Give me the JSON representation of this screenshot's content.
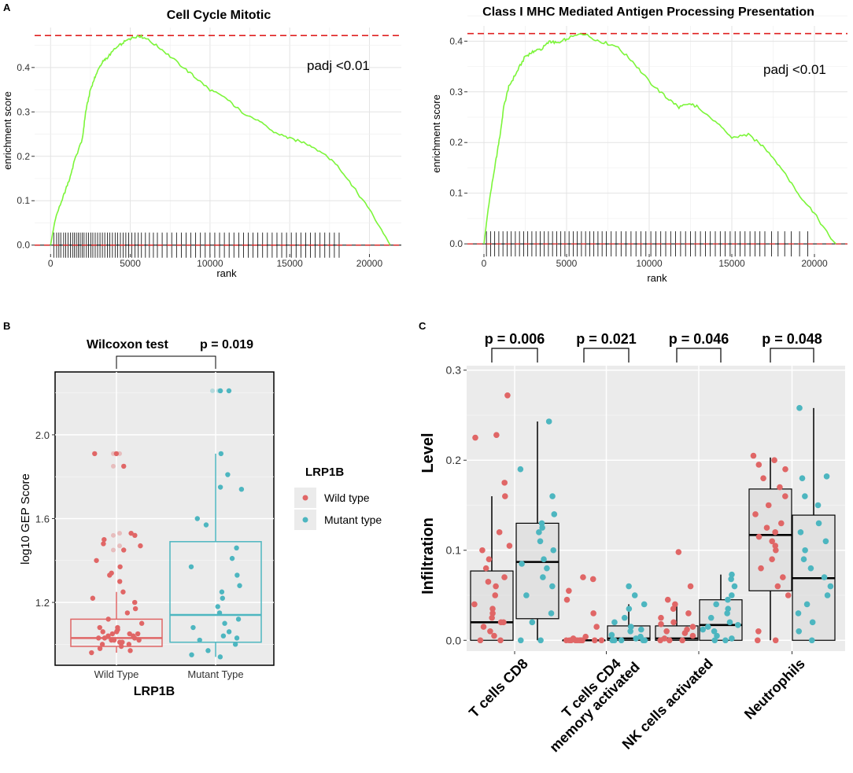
{
  "panels": {
    "A": {
      "letter": "A"
    },
    "B": {
      "letter": "B"
    },
    "C": {
      "letter": "C"
    }
  },
  "chart_data": [
    {
      "id": "gsea1",
      "type": "line",
      "title": "Cell Cycle Mitotic",
      "xlabel": "rank",
      "ylabel": "enrichment score",
      "annotation": "padj <0.01",
      "xlim": [
        -1000,
        22000
      ],
      "ylim": [
        -0.02,
        0.49
      ],
      "xticks": [
        0,
        5000,
        10000,
        15000,
        20000
      ],
      "xtick_labels": [
        "0",
        "5000",
        "10000",
        "15000",
        "20000"
      ],
      "yticks": [
        0.0,
        0.1,
        0.2,
        0.3,
        0.4
      ],
      "ytick_labels": [
        "0.0",
        "0.1",
        "0.2",
        "0.3",
        "0.4"
      ],
      "max_es": 0.472,
      "line_color": "#7cf53a",
      "curve": [
        [
          0,
          0
        ],
        [
          300,
          0.06
        ],
        [
          800,
          0.11
        ],
        [
          1200,
          0.15
        ],
        [
          1500,
          0.19
        ],
        [
          2000,
          0.24
        ],
        [
          2200,
          0.3
        ],
        [
          2500,
          0.35
        ],
        [
          2800,
          0.38
        ],
        [
          3200,
          0.41
        ],
        [
          3500,
          0.42
        ],
        [
          4000,
          0.44
        ],
        [
          4500,
          0.455
        ],
        [
          5000,
          0.465
        ],
        [
          5500,
          0.472
        ],
        [
          6000,
          0.465
        ],
        [
          7000,
          0.44
        ],
        [
          8000,
          0.41
        ],
        [
          9000,
          0.38
        ],
        [
          10000,
          0.35
        ],
        [
          11000,
          0.33
        ],
        [
          12000,
          0.3
        ],
        [
          13000,
          0.28
        ],
        [
          14000,
          0.255
        ],
        [
          15000,
          0.24
        ],
        [
          16000,
          0.23
        ],
        [
          17000,
          0.21
        ],
        [
          18000,
          0.18
        ],
        [
          19000,
          0.13
        ],
        [
          20000,
          0.08
        ],
        [
          21000,
          0.02
        ],
        [
          21300,
          0
        ]
      ],
      "hits": [
        200,
        380,
        520,
        640,
        820,
        950,
        1100,
        1240,
        1380,
        1500,
        1620,
        1740,
        1860,
        1980,
        2100,
        2250,
        2380,
        2520,
        2650,
        2800,
        2950,
        3100,
        3250,
        3400,
        3560,
        3720,
        3880,
        4050,
        4200,
        4380,
        4550,
        4720,
        4900,
        5100,
        5300,
        5500,
        5700,
        5950,
        6200,
        6450,
        6700,
        7000,
        7300,
        7600,
        7900,
        8200,
        8500,
        8800,
        9100,
        9400,
        9700,
        10000,
        10300,
        10600,
        10900,
        11200,
        11500,
        11800,
        12100,
        12400,
        12700,
        13000,
        13300,
        13600,
        13900,
        14200,
        14500,
        14800,
        15100,
        15400,
        15700,
        16000,
        16300,
        16600,
        16900,
        17200,
        17500,
        17800,
        18100
      ]
    },
    {
      "id": "gsea2",
      "type": "line",
      "title": "Class I MHC Mediated Antigen Processing Presentation",
      "xlabel": "rank",
      "ylabel": "enrichment score",
      "annotation": "padj <0.01",
      "xlim": [
        -1000,
        22000
      ],
      "ylim": [
        -0.02,
        0.43
      ],
      "xticks": [
        0,
        5000,
        10000,
        15000,
        20000
      ],
      "xtick_labels": [
        "0",
        "5000",
        "10000",
        "15000",
        "20000"
      ],
      "yticks": [
        0.0,
        0.1,
        0.2,
        0.3,
        0.4
      ],
      "ytick_labels": [
        "0.0",
        "0.1",
        "0.2",
        "0.3",
        "0.4"
      ],
      "max_es": 0.415,
      "line_color": "#7cf53a",
      "curve": [
        [
          0,
          0
        ],
        [
          300,
          0.08
        ],
        [
          700,
          0.16
        ],
        [
          1000,
          0.22
        ],
        [
          1200,
          0.27
        ],
        [
          1500,
          0.31
        ],
        [
          2000,
          0.34
        ],
        [
          2500,
          0.37
        ],
        [
          3000,
          0.38
        ],
        [
          3500,
          0.385
        ],
        [
          4000,
          0.4
        ],
        [
          4500,
          0.395
        ],
        [
          5000,
          0.405
        ],
        [
          6000,
          0.415
        ],
        [
          7000,
          0.4
        ],
        [
          8000,
          0.39
        ],
        [
          9000,
          0.36
        ],
        [
          10000,
          0.32
        ],
        [
          11000,
          0.29
        ],
        [
          11800,
          0.27
        ],
        [
          12500,
          0.275
        ],
        [
          13000,
          0.27
        ],
        [
          14000,
          0.24
        ],
        [
          15000,
          0.21
        ],
        [
          16000,
          0.215
        ],
        [
          17000,
          0.19
        ],
        [
          18000,
          0.15
        ],
        [
          19000,
          0.1
        ],
        [
          20000,
          0.06
        ],
        [
          21000,
          0.01
        ],
        [
          21300,
          0
        ]
      ],
      "hits": [
        150,
        400,
        650,
        900,
        1150,
        1400,
        1650,
        1900,
        2150,
        2400,
        2650,
        2900,
        3150,
        3400,
        3650,
        3900,
        4150,
        4400,
        4650,
        4900,
        5150,
        5400,
        5650,
        5900,
        6150,
        6400,
        6650,
        6900,
        7150,
        7400,
        7700,
        8000,
        8300,
        8600,
        8900,
        9200,
        9500,
        9800,
        10100,
        10400,
        10700,
        11000,
        11300,
        11600,
        11900,
        12200,
        12500,
        12800,
        13100,
        13400,
        13700,
        14000,
        14300,
        14600,
        14900,
        15200,
        15500,
        15800,
        16100,
        16400,
        16700,
        17000,
        17400,
        17800,
        18200,
        18600,
        19100,
        19600
      ]
    },
    {
      "id": "box-lrp1b",
      "type": "box",
      "xlabel": "LRP1B",
      "ylabel": "log10 GEP Score",
      "ylim": [
        0.9,
        2.3
      ],
      "yticks": [
        1.2,
        1.6,
        2.0
      ],
      "ytick_labels": [
        "1.2",
        "1.6",
        "2.0"
      ],
      "categories": [
        "Wild Type",
        "Mutant Type"
      ],
      "test_label": "Wilcoxon test",
      "p_label": "p = 0.019",
      "legend": {
        "title": "LRP1B",
        "entries": [
          "Wild type",
          "Mutant type"
        ],
        "colors": [
          "#e06666",
          "#4db6c0"
        ]
      },
      "series": [
        {
          "name": "Wild type",
          "color": "#e06666",
          "q1": 0.99,
          "median": 1.03,
          "q3": 1.12,
          "whisker_low": 0.96,
          "whisker_high": 1.25,
          "outliers": [
            1.91,
            1.91,
            1.85,
            1.53,
            1.52,
            1.47,
            1.45
          ],
          "points": [
            0.98,
            1.0,
            1.01,
            1.02,
            1.03,
            1.04,
            1.05,
            1.06,
            1.07,
            1.08,
            0.96,
            0.99,
            1.01,
            1.02,
            1.03,
            1.04,
            1.05,
            1.06,
            1.1,
            1.15,
            1.17,
            1.2,
            1.22,
            1.25,
            1.02,
            1.0,
            0.97,
            1.03,
            1.05,
            1.08,
            1.12,
            1.3,
            1.33,
            1.34,
            1.37,
            1.4,
            1.45,
            1.47,
            1.48,
            1.5,
            1.53,
            1.52,
            1.85,
            1.91,
            1.91
          ]
        },
        {
          "name": "Mutant type",
          "color": "#4db6c0",
          "q1": 1.01,
          "median": 1.14,
          "q3": 1.49,
          "whisker_low": 0.94,
          "whisker_high": 1.91,
          "outliers": [
            2.21,
            2.21
          ],
          "points": [
            0.94,
            0.95,
            0.97,
            1.0,
            1.02,
            1.03,
            1.04,
            1.06,
            1.08,
            1.1,
            1.12,
            1.15,
            1.18,
            1.22,
            1.25,
            1.28,
            1.33,
            1.37,
            1.41,
            1.46,
            1.57,
            1.6,
            1.74,
            1.75,
            1.81,
            1.91,
            2.21,
            2.21
          ]
        }
      ]
    },
    {
      "id": "box-infiltration",
      "type": "box",
      "xlabel": "",
      "ylabel_lines": [
        "Infiltration",
        "Level"
      ],
      "ylim": [
        -0.012,
        0.305
      ],
      "yticks": [
        0.0,
        0.1,
        0.2,
        0.3
      ],
      "ytick_labels": [
        "0.0",
        "0.1",
        "0.2",
        "0.3"
      ],
      "categories": [
        "T cells CD8",
        "T cells CD4 memory activated",
        "NK cells activated",
        "Neutrophils"
      ],
      "category_lines": [
        [
          "T cells CD8"
        ],
        [
          "T cells CD4",
          "memory activated"
        ],
        [
          "NK cells activated"
        ],
        [
          "Neutrophils"
        ]
      ],
      "p_labels": [
        "p = 0.006",
        "p = 0.021",
        "p = 0.046",
        "p = 0.048"
      ],
      "groups": [
        {
          "wt": {
            "q1": 0.0,
            "median": 0.02,
            "q3": 0.077,
            "whisker_low": 0.0,
            "whisker_high": 0.16,
            "points": [
              0.0,
              0.0,
              0.005,
              0.01,
              0.015,
              0.02,
              0.02,
              0.025,
              0.03,
              0.035,
              0.04,
              0.05,
              0.06,
              0.065,
              0.07,
              0.08,
              0.09,
              0.1,
              0.105,
              0.12,
              0.16,
              0.175,
              0.225,
              0.228,
              0.272
            ]
          },
          "mt": {
            "q1": 0.024,
            "median": 0.087,
            "q3": 0.13,
            "whisker_low": 0.0,
            "whisker_high": 0.243,
            "points": [
              0.0,
              0.0,
              0.02,
              0.03,
              0.05,
              0.06,
              0.07,
              0.08,
              0.085,
              0.09,
              0.1,
              0.11,
              0.12,
              0.125,
              0.13,
              0.14,
              0.16,
              0.19,
              0.243
            ]
          }
        },
        {
          "wt": {
            "q1": 0.0,
            "median": 0.0,
            "q3": 0.0,
            "whisker_low": 0.0,
            "whisker_high": 0.0,
            "points": [
              0.0,
              0.0,
              0.0,
              0.0,
              0.0,
              0.0,
              0.0,
              0.0,
              0.0,
              0.0,
              0.0,
              0.002,
              0.004,
              0.015,
              0.03,
              0.045,
              0.055,
              0.068,
              0.07
            ]
          },
          "mt": {
            "q1": 0.0,
            "median": 0.002,
            "q3": 0.016,
            "whisker_low": 0.0,
            "whisker_high": 0.04,
            "points": [
              0.0,
              0.0,
              0.0,
              0.0,
              0.0,
              0.002,
              0.004,
              0.006,
              0.01,
              0.012,
              0.015,
              0.02,
              0.025,
              0.035,
              0.04,
              0.05,
              0.06
            ]
          }
        },
        {
          "wt": {
            "q1": 0.0,
            "median": 0.002,
            "q3": 0.016,
            "whisker_low": 0.0,
            "whisker_high": 0.038,
            "points": [
              0.0,
              0.0,
              0.0,
              0.002,
              0.005,
              0.008,
              0.01,
              0.012,
              0.015,
              0.018,
              0.02,
              0.025,
              0.03,
              0.035,
              0.04,
              0.045,
              0.06,
              0.098
            ]
          },
          "mt": {
            "q1": 0.0,
            "median": 0.017,
            "q3": 0.045,
            "whisker_low": 0.0,
            "whisker_high": 0.073,
            "points": [
              0.0,
              0.0,
              0.002,
              0.005,
              0.01,
              0.012,
              0.015,
              0.017,
              0.02,
              0.025,
              0.03,
              0.035,
              0.04,
              0.045,
              0.05,
              0.06,
              0.068,
              0.073
            ]
          }
        },
        {
          "wt": {
            "q1": 0.055,
            "median": 0.117,
            "q3": 0.168,
            "whisker_low": 0.0,
            "whisker_high": 0.203,
            "points": [
              0.0,
              0.0,
              0.01,
              0.05,
              0.06,
              0.07,
              0.08,
              0.09,
              0.1,
              0.105,
              0.11,
              0.115,
              0.12,
              0.125,
              0.13,
              0.14,
              0.15,
              0.16,
              0.17,
              0.18,
              0.19,
              0.195,
              0.2,
              0.205
            ]
          },
          "mt": {
            "q1": 0.0,
            "median": 0.069,
            "q3": 0.139,
            "whisker_low": 0.0,
            "whisker_high": 0.258,
            "points": [
              0.0,
              0.01,
              0.02,
              0.03,
              0.04,
              0.05,
              0.06,
              0.07,
              0.08,
              0.09,
              0.1,
              0.11,
              0.12,
              0.13,
              0.15,
              0.16,
              0.18,
              0.182,
              0.258
            ]
          }
        }
      ]
    }
  ]
}
